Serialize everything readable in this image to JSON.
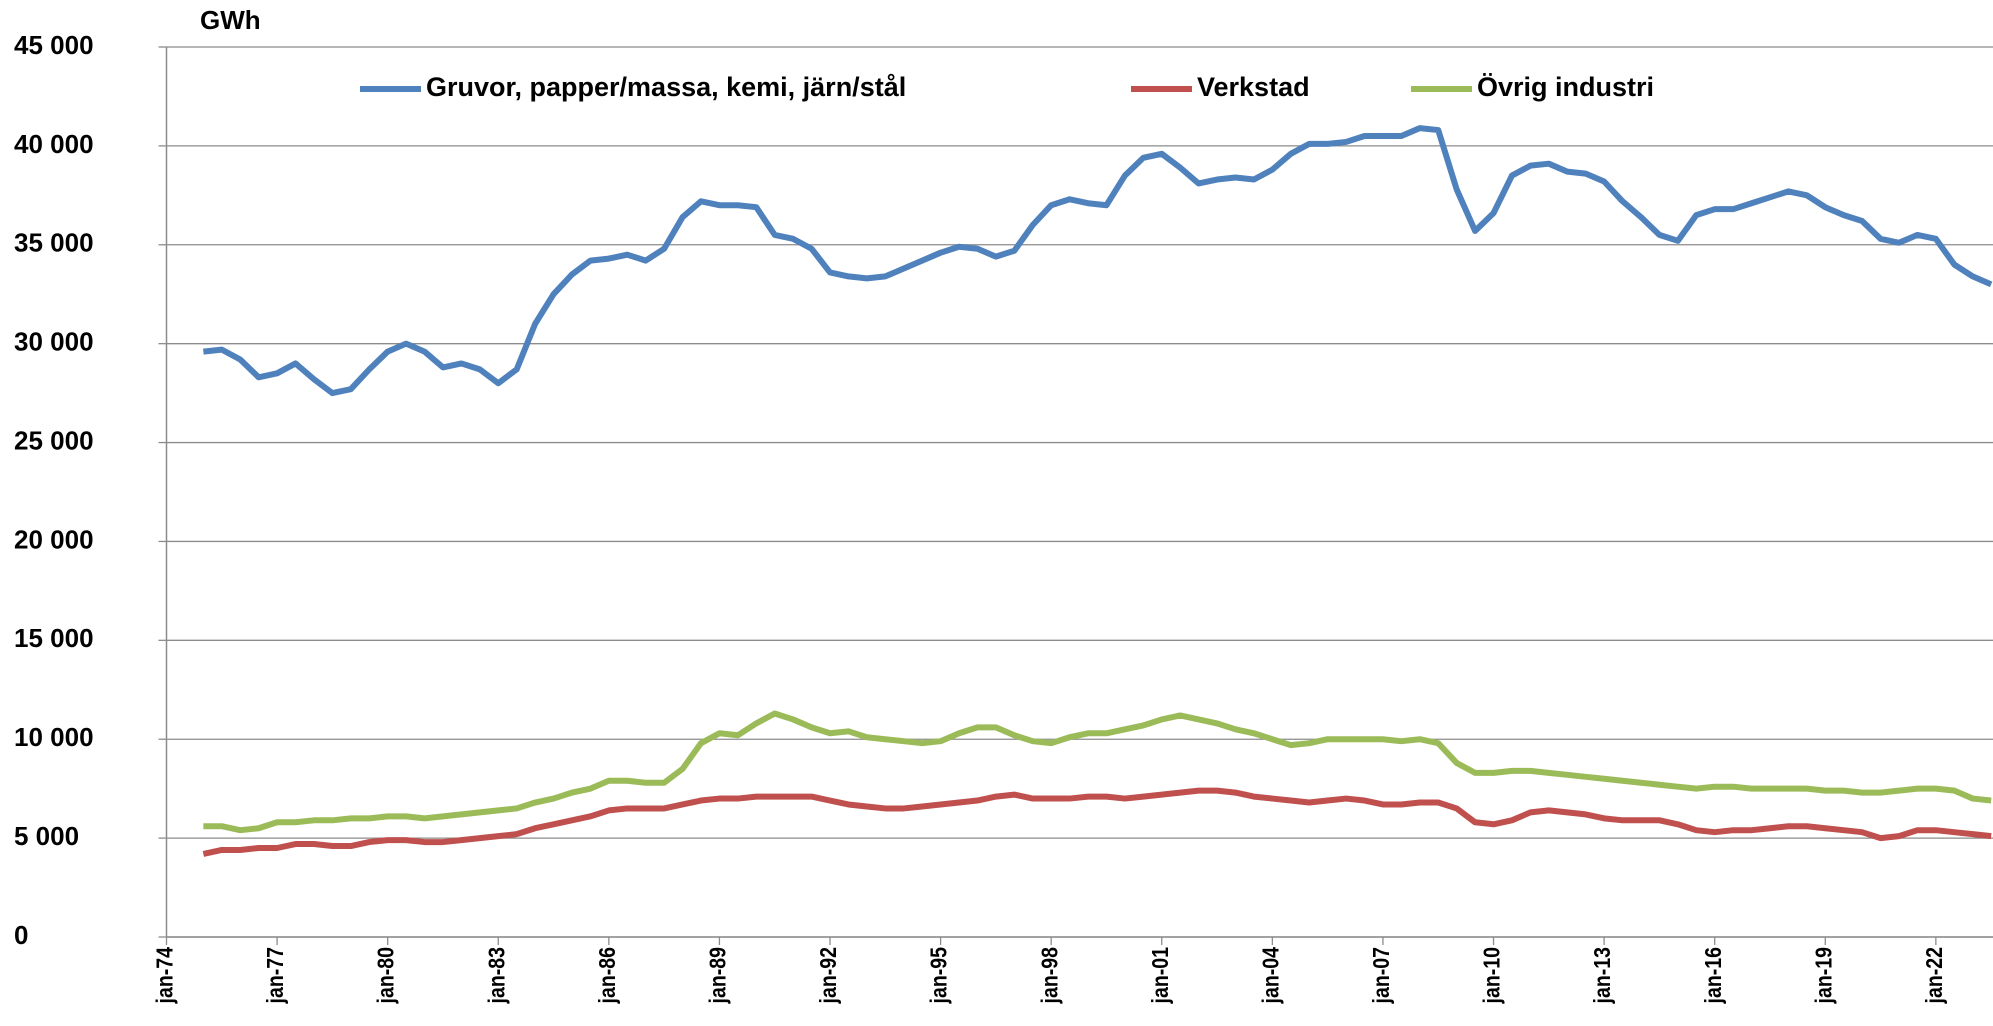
{
  "chart_data": {
    "type": "line",
    "y_label": "GWh",
    "x": [
      1975,
      1975.5,
      1976,
      1976.5,
      1977,
      1977.5,
      1978,
      1978.5,
      1979,
      1979.5,
      1980,
      1980.5,
      1981,
      1981.5,
      1982,
      1982.5,
      1983,
      1983.5,
      1984,
      1984.5,
      1985,
      1985.5,
      1986,
      1986.5,
      1987,
      1987.5,
      1988,
      1988.5,
      1989,
      1989.5,
      1990,
      1990.5,
      1991,
      1991.5,
      1992,
      1992.5,
      1993,
      1993.5,
      1994,
      1994.5,
      1995,
      1995.5,
      1996,
      1996.5,
      1997,
      1997.5,
      1998,
      1998.5,
      1999,
      1999.5,
      2000,
      2000.5,
      2001,
      2001.5,
      2002,
      2002.5,
      2003,
      2003.5,
      2004,
      2004.5,
      2005,
      2005.5,
      2006,
      2006.5,
      2007,
      2007.5,
      2008,
      2008.5,
      2009,
      2009.5,
      2010,
      2010.5,
      2011,
      2011.5,
      2012,
      2012.5,
      2013,
      2013.5,
      2014,
      2014.5,
      2015,
      2015.5,
      2016,
      2016.5,
      2017,
      2017.5,
      2018,
      2018.5,
      2019,
      2019.5,
      2020,
      2020.5,
      2021,
      2021.5,
      2022,
      2022.5,
      2023,
      2023.5
    ],
    "series": [
      {
        "name": "Gruvor, papper/massa, kemi, järn/stål",
        "color": "#4f81bd",
        "values": [
          29600,
          29700,
          29200,
          28300,
          28500,
          29000,
          28200,
          27500,
          27700,
          28700,
          29600,
          30000,
          29600,
          28800,
          29000,
          28700,
          28000,
          28700,
          31000,
          32500,
          33500,
          34200,
          34300,
          34500,
          34200,
          34800,
          36400,
          37200,
          37000,
          37000,
          36900,
          35500,
          35300,
          34800,
          33600,
          33400,
          33300,
          33400,
          33800,
          34200,
          34600,
          34900,
          34800,
          34400,
          34700,
          36000,
          37000,
          37300,
          37100,
          37000,
          38500,
          39400,
          39600,
          38900,
          38100,
          38300,
          38400,
          38300,
          38800,
          39600,
          40100,
          40100,
          40200,
          40500,
          40500,
          40500,
          40900,
          40800,
          37800,
          35700,
          36600,
          38500,
          39000,
          39100,
          38700,
          38600,
          38200,
          37200,
          36400,
          35500,
          35200,
          36500,
          36800,
          36800,
          37100,
          37400,
          37700,
          37500,
          36900,
          36500,
          36200,
          35300,
          35100,
          35500,
          35300,
          34000,
          33400,
          33000
        ]
      },
      {
        "name": "Verkstad",
        "color": "#c0504d",
        "values": [
          4200,
          4400,
          4400,
          4500,
          4500,
          4700,
          4700,
          4600,
          4600,
          4800,
          4900,
          4900,
          4800,
          4800,
          4900,
          5000,
          5100,
          5200,
          5500,
          5700,
          5900,
          6100,
          6400,
          6500,
          6500,
          6500,
          6700,
          6900,
          7000,
          7000,
          7100,
          7100,
          7100,
          7100,
          6900,
          6700,
          6600,
          6500,
          6500,
          6600,
          6700,
          6800,
          6900,
          7100,
          7200,
          7000,
          7000,
          7000,
          7100,
          7100,
          7000,
          7100,
          7200,
          7300,
          7400,
          7400,
          7300,
          7100,
          7000,
          6900,
          6800,
          6900,
          7000,
          6900,
          6700,
          6700,
          6800,
          6800,
          6500,
          5800,
          5700,
          5900,
          6300,
          6400,
          6300,
          6200,
          6000,
          5900,
          5900,
          5900,
          5700,
          5400,
          5300,
          5400,
          5400,
          5500,
          5600,
          5600,
          5500,
          5400,
          5300,
          5000,
          5100,
          5400,
          5400,
          5300,
          5200,
          5100
        ]
      },
      {
        "name": "Övrig industri",
        "color": "#9bbb59",
        "values": [
          5600,
          5600,
          5400,
          5500,
          5800,
          5800,
          5900,
          5900,
          6000,
          6000,
          6100,
          6100,
          6000,
          6100,
          6200,
          6300,
          6400,
          6500,
          6800,
          7000,
          7300,
          7500,
          7900,
          7900,
          7800,
          7800,
          8500,
          9800,
          10300,
          10200,
          10800,
          11300,
          11000,
          10600,
          10300,
          10400,
          10100,
          10000,
          9900,
          9800,
          9900,
          10300,
          10600,
          10600,
          10200,
          9900,
          9800,
          10100,
          10300,
          10300,
          10500,
          10700,
          11000,
          11200,
          11000,
          10800,
          10500,
          10300,
          10000,
          9700,
          9800,
          10000,
          10000,
          10000,
          10000,
          9900,
          10000,
          9800,
          8800,
          8300,
          8300,
          8400,
          8400,
          8300,
          8200,
          8100,
          8000,
          7900,
          7800,
          7700,
          7600,
          7500,
          7600,
          7600,
          7500,
          7500,
          7500,
          7500,
          7400,
          7400,
          7300,
          7300,
          7400,
          7500,
          7500,
          7400,
          7000,
          6900
        ]
      }
    ],
    "xlim": [
      1974,
      2023.55
    ],
    "xticks": [
      {
        "value": 1974,
        "label": "jan-74"
      },
      {
        "value": 1977,
        "label": "jan-77"
      },
      {
        "value": 1980,
        "label": "jan-80"
      },
      {
        "value": 1983,
        "label": "jan-83"
      },
      {
        "value": 1986,
        "label": "jan-86"
      },
      {
        "value": 1989,
        "label": "jan-89"
      },
      {
        "value": 1992,
        "label": "jan-92"
      },
      {
        "value": 1995,
        "label": "jan-95"
      },
      {
        "value": 1998,
        "label": "jan-98"
      },
      {
        "value": 2001,
        "label": "jan-01"
      },
      {
        "value": 2004,
        "label": "jan-04"
      },
      {
        "value": 2007,
        "label": "jan-07"
      },
      {
        "value": 2010,
        "label": "jan-10"
      },
      {
        "value": 2013,
        "label": "jan-13"
      },
      {
        "value": 2016,
        "label": "jan-16"
      },
      {
        "value": 2019,
        "label": "jan-19"
      },
      {
        "value": 2022,
        "label": "jan-22"
      }
    ],
    "ylim": [
      0,
      45000
    ],
    "yticks": [
      0,
      {
        "value": 5000,
        "label": "5 000"
      },
      {
        "value": 10000,
        "label": "10 000"
      },
      {
        "value": 15000,
        "label": "15 000"
      },
      {
        "value": 20000,
        "label": "20 000"
      },
      {
        "value": 25000,
        "label": "25 000"
      },
      {
        "value": 30000,
        "label": "30 000"
      },
      {
        "value": 35000,
        "label": "35 000"
      },
      {
        "value": 40000,
        "label": "40 000"
      },
      {
        "value": 45000,
        "label": "45 000"
      }
    ],
    "grid": true,
    "legend": "top"
  }
}
